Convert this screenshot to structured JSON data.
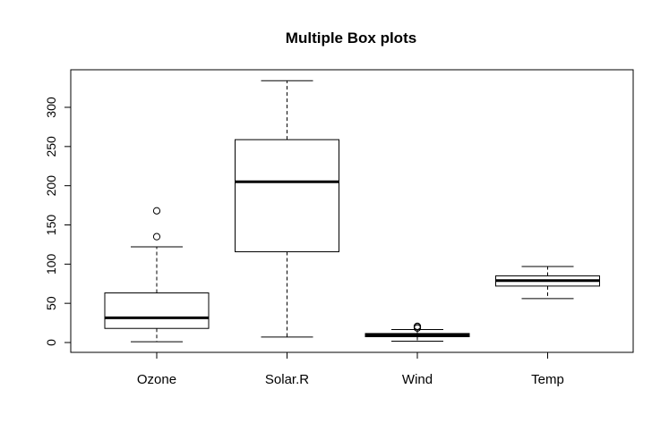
{
  "chart_data": {
    "type": "box",
    "title": "Multiple Box plots",
    "xlabel": "",
    "ylabel": "",
    "ylim": [
      -12,
      345
    ],
    "yticks": [
      0,
      50,
      100,
      150,
      200,
      250,
      300
    ],
    "ytick_labels": [
      "0",
      "50",
      "100",
      "150",
      "200",
      "250",
      "300"
    ],
    "categories": [
      "Ozone",
      "Solar.R",
      "Wind",
      "Temp"
    ],
    "boxes": [
      {
        "label": "Ozone",
        "whisker_low": 1,
        "q1": 18,
        "median": 31.5,
        "q3": 63.25,
        "whisker_high": 122,
        "outliers": [
          135,
          168
        ]
      },
      {
        "label": "Solar.R",
        "whisker_low": 7,
        "q1": 115.75,
        "median": 205,
        "q3": 258.75,
        "whisker_high": 334,
        "outliers": []
      },
      {
        "label": "Wind",
        "whisker_low": 1.7,
        "q1": 7.4,
        "median": 9.7,
        "q3": 11.5,
        "whisker_high": 16.6,
        "outliers": [
          18.4,
          20.1,
          20.7
        ]
      },
      {
        "label": "Temp",
        "whisker_low": 56,
        "q1": 72,
        "median": 79,
        "q3": 85,
        "whisker_high": 97,
        "outliers": []
      }
    ],
    "grid": false,
    "legend": "none"
  }
}
